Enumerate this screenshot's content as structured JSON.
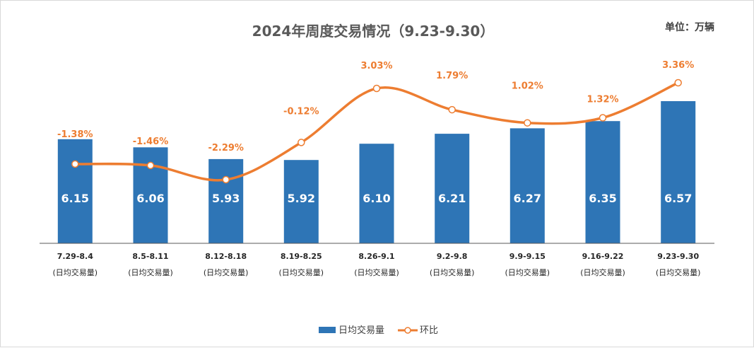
{
  "chart_data": {
    "type": "bar",
    "title": "2024年周度交易情况（9.23-9.30）",
    "unit_label": "单位：万辆",
    "categories": [
      "7.29-8.4",
      "8.5-8.11",
      "8.12-8.18",
      "8.19-8.25",
      "8.26-9.1",
      "9.2-9.8",
      "9.9-9.15",
      "9.16-9.22",
      "9.23-9.30"
    ],
    "category_sublabel": "(日均交易量)",
    "series": [
      {
        "name": "日均交易量",
        "type": "bar",
        "color": "#2e75b6",
        "values": [
          6.15,
          6.06,
          5.93,
          5.92,
          6.1,
          6.21,
          6.27,
          6.35,
          6.57
        ],
        "labels": [
          "6.15",
          "6.06",
          "5.93",
          "5.92",
          "6.10",
          "6.21",
          "6.27",
          "6.35",
          "6.57"
        ]
      },
      {
        "name": "环比",
        "type": "line",
        "color": "#ed7d31",
        "values": [
          -1.38,
          -1.46,
          -2.29,
          -0.12,
          3.03,
          1.79,
          1.02,
          1.32,
          3.36
        ],
        "labels": [
          "-1.38%",
          "-1.46%",
          "-2.29%",
          "-0.12%",
          "3.03%",
          "1.79%",
          "1.02%",
          "1.32%",
          "3.36%"
        ]
      }
    ],
    "legend": [
      "日均交易量",
      "环比"
    ],
    "legend_position": "bottom"
  }
}
